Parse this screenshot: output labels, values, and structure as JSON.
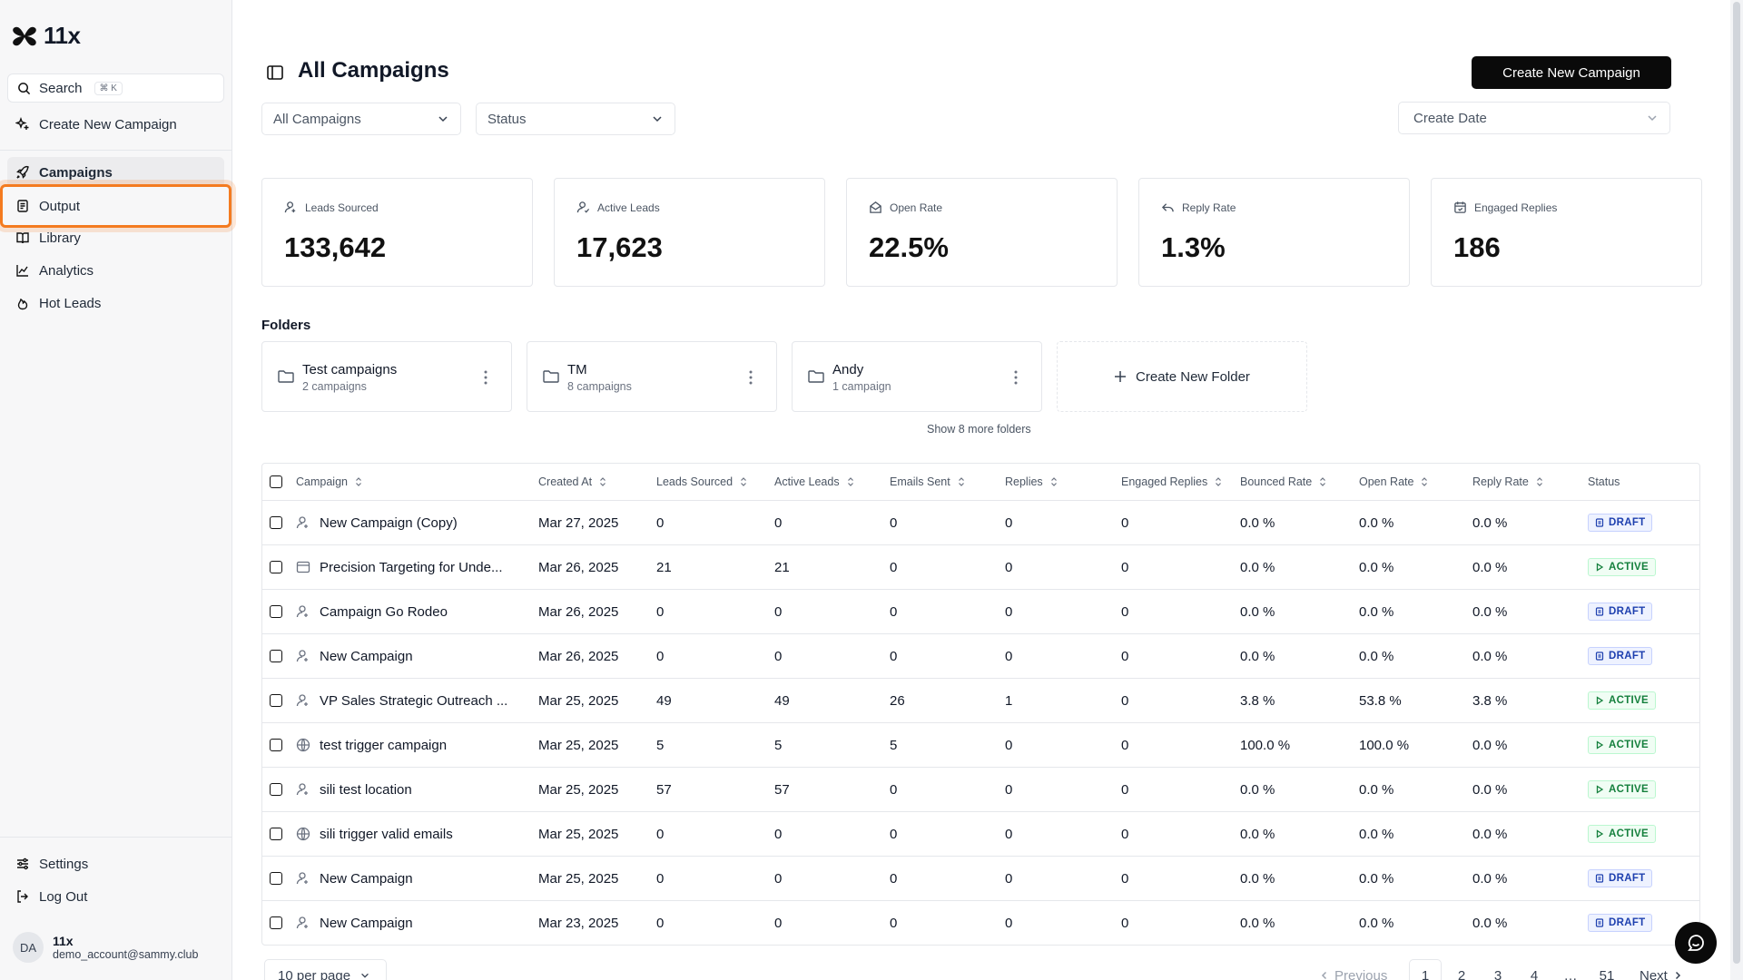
{
  "app": {
    "logo_text": "11x"
  },
  "sidebar": {
    "search_label": "Search",
    "search_shortcut": "⌘ K",
    "create_label": "Create New Campaign",
    "items": [
      {
        "label": "Campaigns",
        "icon": "rocket-icon"
      },
      {
        "label": "Output",
        "icon": "document-icon"
      },
      {
        "label": "Library",
        "icon": "book-icon"
      },
      {
        "label": "Analytics",
        "icon": "chart-line-icon"
      },
      {
        "label": "Hot Leads",
        "icon": "flame-icon"
      }
    ],
    "settings_label": "Settings",
    "logout_label": "Log Out",
    "user": {
      "initials": "DA",
      "name": "11x",
      "email": "demo_account@sammy.club"
    }
  },
  "header": {
    "title": "All Campaigns",
    "create_button": "Create New Campaign",
    "filter_campaigns": "All Campaigns",
    "filter_status": "Status",
    "filter_date": "Create Date"
  },
  "stats": [
    {
      "label": "Leads Sourced",
      "value": "133,642"
    },
    {
      "label": "Active Leads",
      "value": "17,623"
    },
    {
      "label": "Open Rate",
      "value": "22.5%"
    },
    {
      "label": "Reply Rate",
      "value": "1.3%"
    },
    {
      "label": "Engaged Replies",
      "value": "186"
    }
  ],
  "folders": {
    "title": "Folders",
    "items": [
      {
        "name": "Test campaigns",
        "count": "2 campaigns"
      },
      {
        "name": "TM",
        "count": "8 campaigns"
      },
      {
        "name": "Andy",
        "count": "1 campaign"
      }
    ],
    "create_label": "Create New Folder",
    "show_more": "Show 8 more folders"
  },
  "table": {
    "columns": [
      "Campaign",
      "Created At",
      "Leads Sourced",
      "Active Leads",
      "Emails Sent",
      "Replies",
      "Engaged Replies",
      "Bounced Rate",
      "Open Rate",
      "Reply Rate",
      "Status"
    ],
    "rows": [
      {
        "icon": "user-icon",
        "campaign": "New Campaign (Copy)",
        "created": "Mar 27, 2025",
        "leads": "0",
        "active": "0",
        "sent": "0",
        "replies": "0",
        "engaged": "0",
        "bounced": "0.0 %",
        "open": "0.0 %",
        "reply": "0.0 %",
        "status": "DRAFT"
      },
      {
        "icon": "browser-icon",
        "campaign": "Precision Targeting for Unde...",
        "created": "Mar 26, 2025",
        "leads": "21",
        "active": "21",
        "sent": "0",
        "replies": "0",
        "engaged": "0",
        "bounced": "0.0 %",
        "open": "0.0 %",
        "reply": "0.0 %",
        "status": "ACTIVE"
      },
      {
        "icon": "user-icon",
        "campaign": "Campaign Go Rodeo",
        "created": "Mar 26, 2025",
        "leads": "0",
        "active": "0",
        "sent": "0",
        "replies": "0",
        "engaged": "0",
        "bounced": "0.0 %",
        "open": "0.0 %",
        "reply": "0.0 %",
        "status": "DRAFT"
      },
      {
        "icon": "user-icon",
        "campaign": "New Campaign",
        "created": "Mar 26, 2025",
        "leads": "0",
        "active": "0",
        "sent": "0",
        "replies": "0",
        "engaged": "0",
        "bounced": "0.0 %",
        "open": "0.0 %",
        "reply": "0.0 %",
        "status": "DRAFT"
      },
      {
        "icon": "user-icon",
        "campaign": "VP Sales Strategic Outreach ...",
        "created": "Mar 25, 2025",
        "leads": "49",
        "active": "49",
        "sent": "26",
        "replies": "1",
        "engaged": "0",
        "bounced": "3.8 %",
        "open": "53.8 %",
        "reply": "3.8 %",
        "status": "ACTIVE"
      },
      {
        "icon": "globe-icon",
        "campaign": "test trigger campaign",
        "created": "Mar 25, 2025",
        "leads": "5",
        "active": "5",
        "sent": "5",
        "replies": "0",
        "engaged": "0",
        "bounced": "100.0 %",
        "open": "100.0 %",
        "reply": "0.0 %",
        "status": "ACTIVE"
      },
      {
        "icon": "user-icon",
        "campaign": "sili test location",
        "created": "Mar 25, 2025",
        "leads": "57",
        "active": "57",
        "sent": "0",
        "replies": "0",
        "engaged": "0",
        "bounced": "0.0 %",
        "open": "0.0 %",
        "reply": "0.0 %",
        "status": "ACTIVE"
      },
      {
        "icon": "globe-icon",
        "campaign": "sili trigger valid emails",
        "created": "Mar 25, 2025",
        "leads": "0",
        "active": "0",
        "sent": "0",
        "replies": "0",
        "engaged": "0",
        "bounced": "0.0 %",
        "open": "0.0 %",
        "reply": "0.0 %",
        "status": "ACTIVE"
      },
      {
        "icon": "user-icon",
        "campaign": "New Campaign",
        "created": "Mar 25, 2025",
        "leads": "0",
        "active": "0",
        "sent": "0",
        "replies": "0",
        "engaged": "0",
        "bounced": "0.0 %",
        "open": "0.0 %",
        "reply": "0.0 %",
        "status": "DRAFT"
      },
      {
        "icon": "user-icon",
        "campaign": "New Campaign",
        "created": "Mar 23, 2025",
        "leads": "0",
        "active": "0",
        "sent": "0",
        "replies": "0",
        "engaged": "0",
        "bounced": "0.0 %",
        "open": "0.0 %",
        "reply": "0.0 %",
        "status": "DRAFT"
      }
    ]
  },
  "pagination": {
    "per_page": "10 per page",
    "previous": "Previous",
    "pages": [
      "1",
      "2",
      "3",
      "4"
    ],
    "ellipsis": "…",
    "last": "51",
    "next": "Next",
    "current": "1"
  }
}
